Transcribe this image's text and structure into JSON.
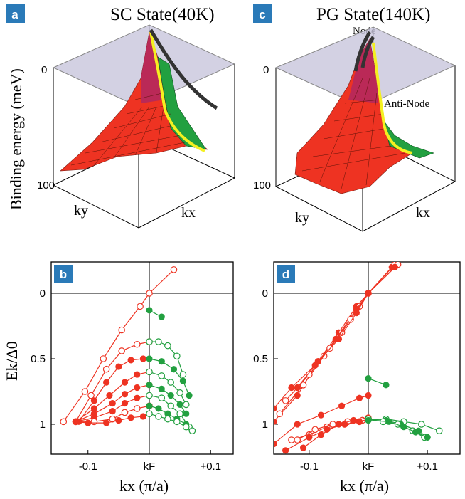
{
  "panels": {
    "a": {
      "badge": "a",
      "title": "SC State(40K)",
      "ylabel": "Binding energy (meV)",
      "tick_top": "0",
      "tick_bottom": "100",
      "ky": "ky",
      "kx": "kx"
    },
    "c": {
      "badge": "c",
      "title": "PG State(140K)",
      "tick_top": "0",
      "tick_bottom": "100",
      "node": "Node",
      "antinode": "Anti-Node",
      "ky": "ky",
      "kx": "kx"
    },
    "b": {
      "badge": "b"
    },
    "d": {
      "badge": "d"
    }
  },
  "colors": {
    "badge": "#2a7ab8",
    "red": "#ee3322",
    "green": "#22a040",
    "plane": "#c8c6dc",
    "yellow": "#f4f020",
    "black_curve": "#333333"
  },
  "chart_data": [
    {
      "type": "scatter",
      "panel": "b",
      "ylabel": "Ek/Δ0",
      "xlabel": "kx (π/a)",
      "xticks": [
        "-0.1",
        "kF",
        "+0.1"
      ],
      "yticks": [
        "0",
        "0.5",
        "1"
      ],
      "xlim": [
        -0.16,
        0.12
      ],
      "ylim": [
        -0.2,
        1.2
      ],
      "series": [
        {
          "color": "red",
          "fill": "open",
          "x": [
            -0.14,
            -0.105,
            -0.075,
            -0.045,
            -0.015,
            0.0,
            0.04
          ],
          "y": [
            0.98,
            0.75,
            0.5,
            0.28,
            0.1,
            0.0,
            -0.18
          ]
        },
        {
          "color": "red",
          "fill": "open",
          "x": [
            -0.12,
            -0.095,
            -0.07,
            -0.045,
            -0.02,
            0.0
          ],
          "y": [
            0.98,
            0.78,
            0.58,
            0.44,
            0.39,
            0.37
          ]
        },
        {
          "color": "red",
          "fill": "filled",
          "x": [
            -0.115,
            -0.09,
            -0.07,
            -0.05,
            -0.03,
            -0.01
          ],
          "y": [
            0.98,
            0.82,
            0.68,
            0.56,
            0.51,
            0.5
          ]
        },
        {
          "color": "red",
          "fill": "filled",
          "x": [
            -0.12,
            -0.09,
            -0.065,
            -0.04,
            -0.02,
            0.0
          ],
          "y": [
            0.98,
            0.88,
            0.78,
            0.68,
            0.62,
            0.6
          ]
        },
        {
          "color": "red",
          "fill": "filled",
          "x": [
            -0.12,
            -0.09,
            -0.06,
            -0.04,
            -0.02,
            0.0
          ],
          "y": [
            0.98,
            0.92,
            0.84,
            0.77,
            0.72,
            0.7
          ]
        },
        {
          "color": "red",
          "fill": "filled",
          "x": [
            -0.12,
            -0.09,
            -0.06,
            -0.04,
            -0.02,
            0.0
          ],
          "y": [
            0.98,
            0.95,
            0.9,
            0.84,
            0.8,
            0.78
          ]
        },
        {
          "color": "red",
          "fill": "open",
          "x": [
            -0.12,
            -0.09,
            -0.06,
            -0.04,
            -0.02,
            0.0
          ],
          "y": [
            0.98,
            0.98,
            0.96,
            0.91,
            0.88,
            0.86
          ]
        },
        {
          "color": "red",
          "fill": "filled",
          "x": [
            -0.12,
            -0.1,
            -0.07,
            -0.05,
            -0.03,
            -0.01,
            0.0
          ],
          "y": [
            0.98,
            0.99,
            0.99,
            0.97,
            0.95,
            0.94,
            0.92
          ]
        },
        {
          "color": "green",
          "fill": "filled",
          "x": [
            0.0,
            0.02
          ],
          "y": [
            0.13,
            0.18
          ]
        },
        {
          "color": "green",
          "fill": "open",
          "x": [
            0.0,
            0.015,
            0.03,
            0.045,
            0.055
          ],
          "y": [
            0.37,
            0.37,
            0.4,
            0.48,
            0.62
          ]
        },
        {
          "color": "green",
          "fill": "filled",
          "x": [
            0.0,
            0.02,
            0.04,
            0.055,
            0.065
          ],
          "y": [
            0.5,
            0.52,
            0.58,
            0.67,
            0.78
          ]
        },
        {
          "color": "green",
          "fill": "open",
          "x": [
            0.0,
            0.02,
            0.035,
            0.05,
            0.06
          ],
          "y": [
            0.6,
            0.63,
            0.68,
            0.76,
            0.85
          ]
        },
        {
          "color": "green",
          "fill": "filled",
          "x": [
            0.0,
            0.02,
            0.035,
            0.05,
            0.06
          ],
          "y": [
            0.7,
            0.73,
            0.78,
            0.85,
            0.92
          ]
        },
        {
          "color": "green",
          "fill": "open",
          "x": [
            0.0,
            0.02,
            0.035,
            0.05,
            0.065
          ],
          "y": [
            0.78,
            0.8,
            0.86,
            0.92,
            1.02
          ]
        },
        {
          "color": "green",
          "fill": "filled",
          "x": [
            0.0,
            0.015,
            0.03,
            0.045,
            0.06
          ],
          "y": [
            0.86,
            0.88,
            0.92,
            0.96,
            1.0
          ]
        },
        {
          "color": "green",
          "fill": "open",
          "x": [
            0.0,
            0.015,
            0.03,
            0.045,
            0.06,
            0.07
          ],
          "y": [
            0.92,
            0.94,
            0.96,
            0.98,
            1.02,
            1.05
          ]
        }
      ]
    },
    {
      "type": "scatter",
      "panel": "d",
      "ylabel": "Ek/Δ0",
      "xlabel": "kx (π/a)",
      "xticks": [
        "-0.1",
        "kF",
        "+0.1"
      ],
      "yticks": [
        "0",
        "0.5",
        "1"
      ],
      "xlim": [
        -0.16,
        0.16
      ],
      "ylim": [
        -0.2,
        1.2
      ],
      "series": [
        {
          "color": "red",
          "fill": "filled",
          "x": [
            -0.16,
            -0.12,
            -0.085,
            -0.05,
            -0.02,
            0.0,
            0.04
          ],
          "y": [
            0.98,
            0.78,
            0.52,
            0.3,
            0.1,
            0.0,
            -0.2
          ]
        },
        {
          "color": "red",
          "fill": "open",
          "x": [
            -0.15,
            -0.11,
            -0.075,
            -0.045,
            -0.015,
            0.0,
            0.045
          ],
          "y": [
            0.92,
            0.7,
            0.48,
            0.3,
            0.1,
            0.0,
            -0.22
          ]
        },
        {
          "color": "red",
          "fill": "filled",
          "x": [
            -0.16,
            -0.13,
            -0.09,
            -0.055,
            -0.02,
            0.0,
            0.05
          ],
          "y": [
            0.88,
            0.72,
            0.55,
            0.35,
            0.12,
            0.0,
            -0.22
          ]
        },
        {
          "color": "red",
          "fill": "open",
          "x": [
            -0.14,
            -0.1,
            -0.065,
            -0.03,
            0.0,
            0.05
          ],
          "y": [
            0.82,
            0.62,
            0.42,
            0.2,
            0.0,
            -0.22
          ]
        },
        {
          "color": "red",
          "fill": "filled",
          "x": [
            -0.12,
            -0.085,
            -0.05,
            -0.02,
            0.0,
            0.045
          ],
          "y": [
            0.72,
            0.52,
            0.35,
            0.15,
            0.0,
            -0.2
          ]
        },
        {
          "color": "red",
          "fill": "filled",
          "x": [
            -0.16,
            -0.12,
            -0.08,
            -0.045,
            -0.015,
            0.0
          ],
          "y": [
            1.15,
            1.0,
            0.93,
            0.86,
            0.8,
            0.78
          ]
        },
        {
          "color": "red",
          "fill": "open",
          "x": [
            -0.13,
            -0.1,
            -0.07,
            -0.04,
            -0.015,
            0.0
          ],
          "y": [
            1.12,
            1.08,
            1.02,
            1.0,
            0.98,
            0.96
          ]
        },
        {
          "color": "red",
          "fill": "open",
          "x": [
            -0.12,
            -0.09,
            -0.06,
            -0.035,
            -0.01,
            0.0
          ],
          "y": [
            1.12,
            1.04,
            1.0,
            0.98,
            0.97,
            0.96
          ]
        },
        {
          "color": "red",
          "fill": "filled",
          "x": [
            -0.14,
            -0.1,
            -0.07,
            -0.04,
            -0.015,
            0.0
          ],
          "y": [
            1.2,
            1.1,
            1.04,
            1.0,
            0.98,
            0.96
          ]
        },
        {
          "color": "red",
          "fill": "filled",
          "x": [
            -0.11,
            -0.08,
            -0.05,
            -0.025,
            0.0
          ],
          "y": [
            1.18,
            1.08,
            1.0,
            0.97,
            0.95
          ]
        },
        {
          "color": "green",
          "fill": "filled",
          "x": [
            0.0,
            0.03
          ],
          "y": [
            0.65,
            0.7
          ]
        },
        {
          "color": "green",
          "fill": "open",
          "x": [
            0.0,
            0.03,
            0.06,
            0.09,
            0.12
          ],
          "y": [
            0.96,
            0.96,
            0.98,
            1.0,
            1.05
          ]
        },
        {
          "color": "green",
          "fill": "filled",
          "x": [
            0.0,
            0.03,
            0.055,
            0.085,
            0.1
          ],
          "y": [
            0.96,
            0.97,
            1.0,
            1.05,
            1.1
          ]
        },
        {
          "color": "green",
          "fill": "open",
          "x": [
            0.0,
            0.025,
            0.05,
            0.075,
            0.095
          ],
          "y": [
            0.96,
            0.98,
            1.0,
            1.05,
            1.1
          ]
        },
        {
          "color": "green",
          "fill": "filled",
          "x": [
            0.0,
            0.035,
            0.06,
            0.08,
            0.1
          ],
          "y": [
            0.97,
            0.98,
            1.02,
            1.06,
            1.1
          ]
        }
      ]
    }
  ]
}
